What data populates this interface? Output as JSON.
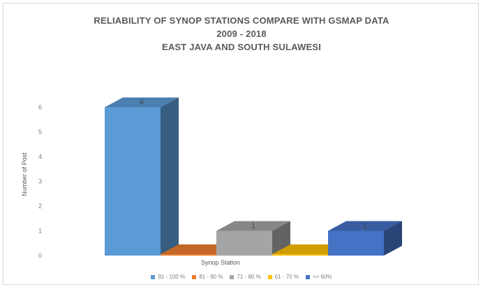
{
  "chart_data": {
    "type": "bar",
    "title": "RELIABILITY OF SYNOP STATIONS COMPARE WITH GSMAP DATA",
    "subtitle_lines": [
      "2009 - 2018",
      "EAST JAVA AND SOUTH SULAWESI"
    ],
    "xlabel": "Synop Station",
    "ylabel": "Number of Post",
    "ylim": [
      0,
      6
    ],
    "yticks": [
      "0",
      "1",
      "2",
      "3",
      "4",
      "5",
      "6"
    ],
    "grid": false,
    "legend_position": "bottom",
    "series": [
      {
        "name": "91 - 100 %",
        "color": "#5b9bd5",
        "value": 6,
        "label": "6"
      },
      {
        "name": "81 - 90 %",
        "color": "#ed7d31",
        "value": 0,
        "label": ""
      },
      {
        "name": "71 - 80 %",
        "color": "#a5a5a5",
        "value": 1,
        "label": "1"
      },
      {
        "name": "61 - 70 %",
        "color": "#ffc000",
        "value": 0,
        "label": ""
      },
      {
        "name": "<= 60%",
        "color": "#4472c4",
        "value": 1,
        "label": "1"
      }
    ]
  }
}
